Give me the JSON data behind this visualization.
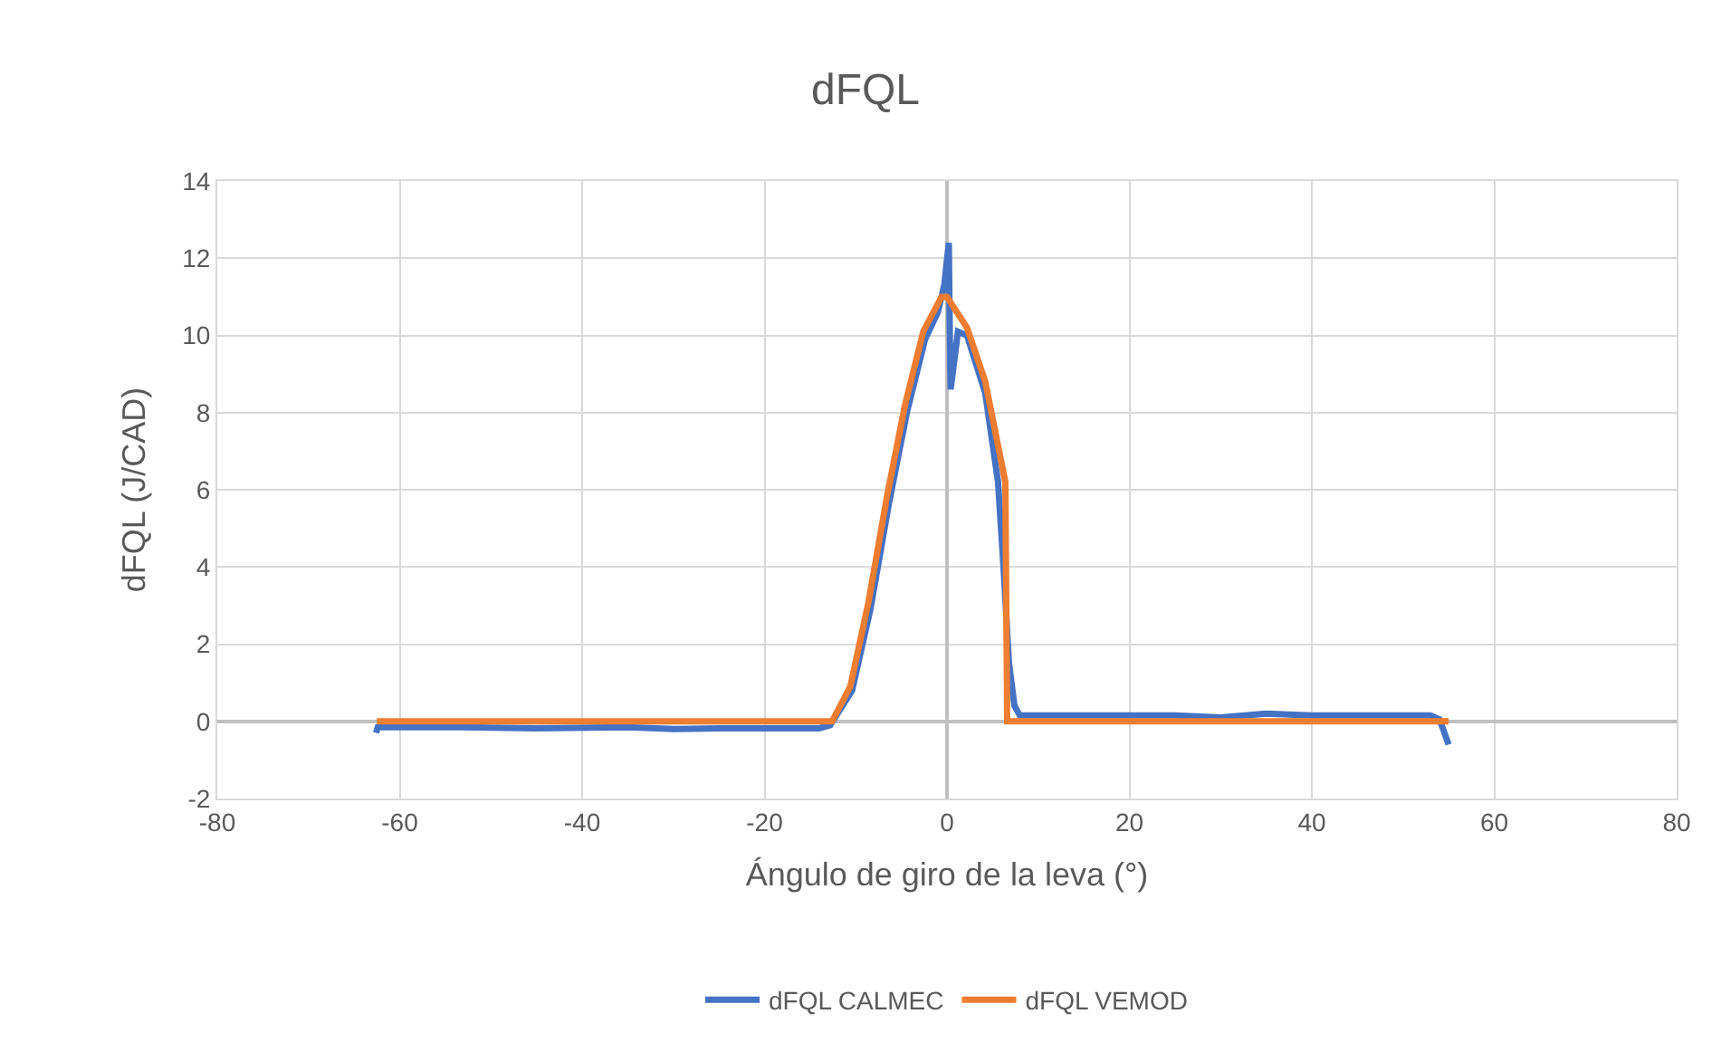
{
  "chart_data": {
    "type": "line",
    "title": "dFQL",
    "xlabel": "Ángulo de giro de la leva (°)",
    "ylabel": "dFQL (J/CAD)",
    "xlim": [
      -80,
      80
    ],
    "xticks": [
      -80,
      -60,
      -40,
      -20,
      0,
      20,
      40,
      60,
      80
    ],
    "ylim": [
      -2,
      14
    ],
    "yticks": [
      -2,
      0,
      2,
      4,
      6,
      8,
      10,
      12,
      14
    ],
    "grid": true,
    "legend": "bottom",
    "marker": "none",
    "line_style": "solid",
    "series": [
      {
        "name": "dFQL CALMEC",
        "color": "#4472c4",
        "x": [
          -62.6,
          -62.4,
          -55,
          -45,
          -35,
          -30,
          -25,
          -20,
          -14,
          -12.8,
          -12,
          -10.4,
          -8.4,
          -6.4,
          -4.4,
          -2.4,
          -1,
          -0.3,
          0.2,
          0.3,
          0.4,
          1.2,
          2.2,
          4.2,
          5.6,
          6.2,
          6.8,
          7.4,
          8,
          15,
          25,
          30,
          35,
          40,
          45,
          50,
          53,
          54,
          55
        ],
        "values": [
          -0.3,
          -0.15,
          -0.15,
          -0.18,
          -0.15,
          -0.2,
          -0.18,
          -0.18,
          -0.18,
          -0.1,
          0.2,
          0.8,
          2.9,
          5.6,
          8.0,
          9.9,
          10.6,
          11.3,
          12.4,
          10.2,
          8.6,
          10.1,
          10.0,
          8.5,
          6.2,
          4.0,
          1.5,
          0.4,
          0.15,
          0.15,
          0.15,
          0.1,
          0.2,
          0.15,
          0.15,
          0.15,
          0.15,
          0.05,
          -0.6
        ]
      },
      {
        "name": "dFQL VEMOD",
        "color": "#ed7d31",
        "x": [
          -62.5,
          -12.6,
          -10.6,
          -8.6,
          -6.6,
          -4.6,
          -2.6,
          -0.6,
          0,
          2.2,
          4.2,
          6.4,
          6.6,
          55
        ],
        "values": [
          0,
          0,
          0.9,
          3.1,
          5.8,
          8.2,
          10.1,
          11.0,
          11.0,
          10.2,
          8.8,
          6.2,
          0,
          0
        ]
      }
    ]
  }
}
